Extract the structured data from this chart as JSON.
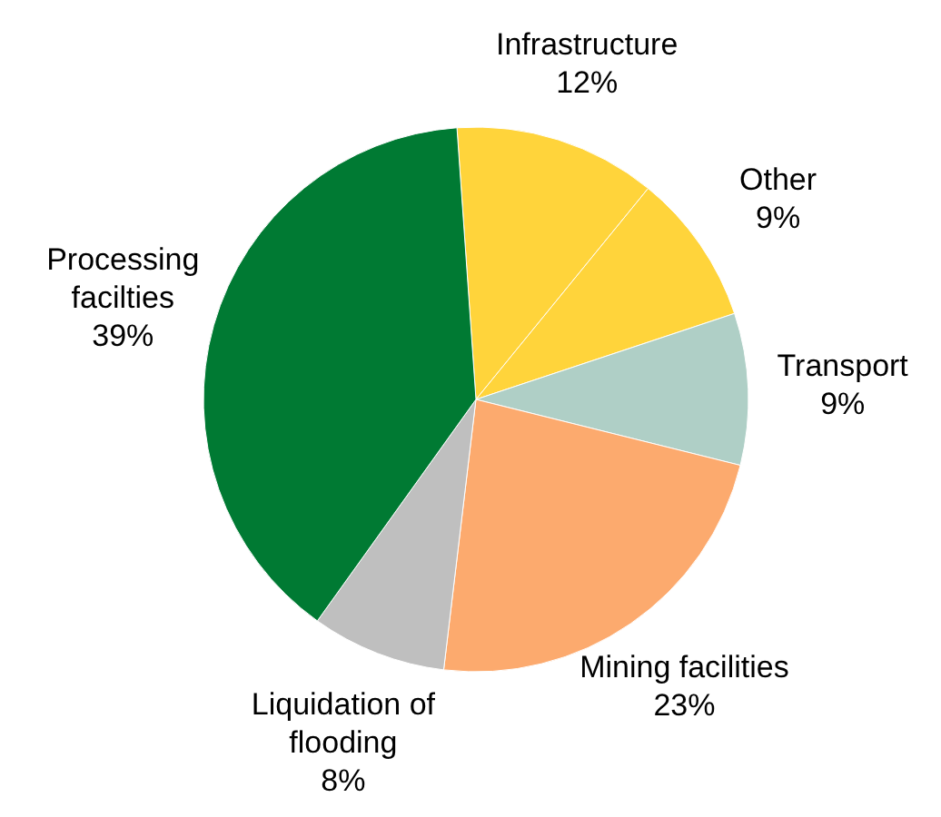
{
  "chart_data": {
    "type": "pie",
    "categories": [
      "Infrastructure",
      "Other",
      "Transport",
      "Mining facilities",
      "Liquidation of flooding",
      "Processing facilties"
    ],
    "values": [
      12,
      9,
      9,
      23,
      8,
      39
    ],
    "value_labels": [
      "12%",
      "9%",
      "9%",
      "23%",
      "8%",
      "39%"
    ],
    "colors": [
      "#ffd43b",
      "#ffd43b",
      "#afcfc6",
      "#fcaa6e",
      "#bfbfbf",
      "#007a33"
    ],
    "legend": false
  }
}
